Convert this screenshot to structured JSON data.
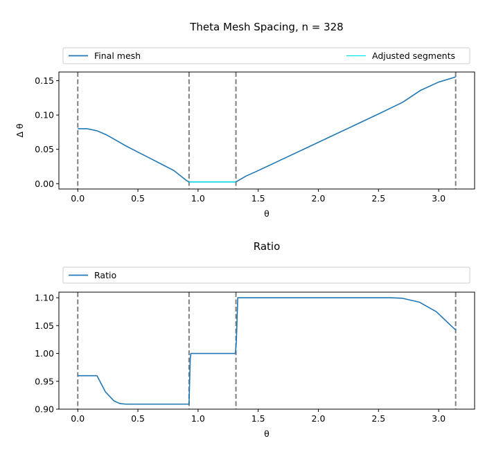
{
  "chart_data": [
    {
      "type": "line",
      "title": "Theta Mesh Spacing, n = 328",
      "xlabel": "θ",
      "ylabel": "Δ θ",
      "xlim": [
        -0.157,
        3.299
      ],
      "ylim": [
        -0.0078,
        0.1627
      ],
      "x_ticks": [
        0.0,
        0.5,
        1.0,
        1.5,
        2.0,
        2.5,
        3.0
      ],
      "x_tick_labels": [
        "0.0",
        "0.5",
        "1.0",
        "1.5",
        "2.0",
        "2.5",
        "3.0"
      ],
      "y_ticks": [
        0.0,
        0.05,
        0.1,
        0.15
      ],
      "y_tick_labels": [
        "0.00",
        "0.05",
        "0.10",
        "0.15"
      ],
      "grid": false,
      "legend_position": "above plot, spanning width",
      "boundaries": [
        0.0,
        0.925,
        1.315,
        3.1416
      ],
      "series": [
        {
          "name": "Final mesh",
          "color": "#1f77b4",
          "x": [
            0.0,
            0.08,
            0.16,
            0.24,
            0.3,
            0.35,
            0.4,
            0.5,
            0.6,
            0.7,
            0.8,
            0.9,
            0.925,
            1.0,
            1.1,
            1.2,
            1.315,
            1.4,
            1.5,
            1.7,
            1.9,
            2.1,
            2.3,
            2.5,
            2.7,
            2.85,
            3.0,
            3.1416
          ],
          "y": [
            0.08,
            0.08,
            0.077,
            0.071,
            0.065,
            0.06,
            0.055,
            0.046,
            0.037,
            0.028,
            0.019,
            0.005,
            0.0025,
            0.0025,
            0.0025,
            0.0025,
            0.0025,
            0.0112,
            0.019,
            0.0355,
            0.052,
            0.0685,
            0.085,
            0.1015,
            0.1185,
            0.136,
            0.148,
            0.1555
          ]
        },
        {
          "name": "Adjusted segments",
          "color": "#00e5ee",
          "x": [
            0.925,
            1.315
          ],
          "y": [
            0.0025,
            0.0025
          ]
        }
      ]
    },
    {
      "type": "line",
      "title": "Ratio",
      "xlabel": "θ",
      "ylabel": "",
      "xlim": [
        -0.157,
        3.299
      ],
      "ylim": [
        0.9,
        1.11
      ],
      "x_ticks": [
        0.0,
        0.5,
        1.0,
        1.5,
        2.0,
        2.5,
        3.0
      ],
      "x_tick_labels": [
        "0.0",
        "0.5",
        "1.0",
        "1.5",
        "2.0",
        "2.5",
        "3.0"
      ],
      "y_ticks": [
        0.9,
        0.95,
        1.0,
        1.05,
        1.1
      ],
      "y_tick_labels": [
        "0.90",
        "0.95",
        "1.00",
        "1.05",
        "1.10"
      ],
      "grid": false,
      "legend_position": "above plot, spanning width",
      "boundaries": [
        0.0,
        0.925,
        1.315,
        3.1416
      ],
      "series": [
        {
          "name": "Ratio",
          "color": "#1f77b4",
          "x": [
            0.0,
            0.08,
            0.16,
            0.23,
            0.3,
            0.35,
            0.4,
            0.6,
            0.8,
            0.925,
            0.935,
            0.94,
            1.0,
            1.1,
            1.2,
            1.31,
            1.318,
            1.33,
            1.4,
            1.6,
            1.8,
            2.0,
            2.2,
            2.4,
            2.6,
            2.7,
            2.84,
            2.98,
            3.1416
          ],
          "y": [
            0.96,
            0.96,
            0.96,
            0.931,
            0.915,
            0.91,
            0.909,
            0.909,
            0.909,
            0.909,
            0.99,
            1.0,
            1.0,
            1.0,
            1.0,
            1.0,
            1.02,
            1.1,
            1.1,
            1.1,
            1.1,
            1.1,
            1.1,
            1.1,
            1.1,
            1.099,
            1.092,
            1.075,
            1.042
          ]
        }
      ]
    }
  ]
}
